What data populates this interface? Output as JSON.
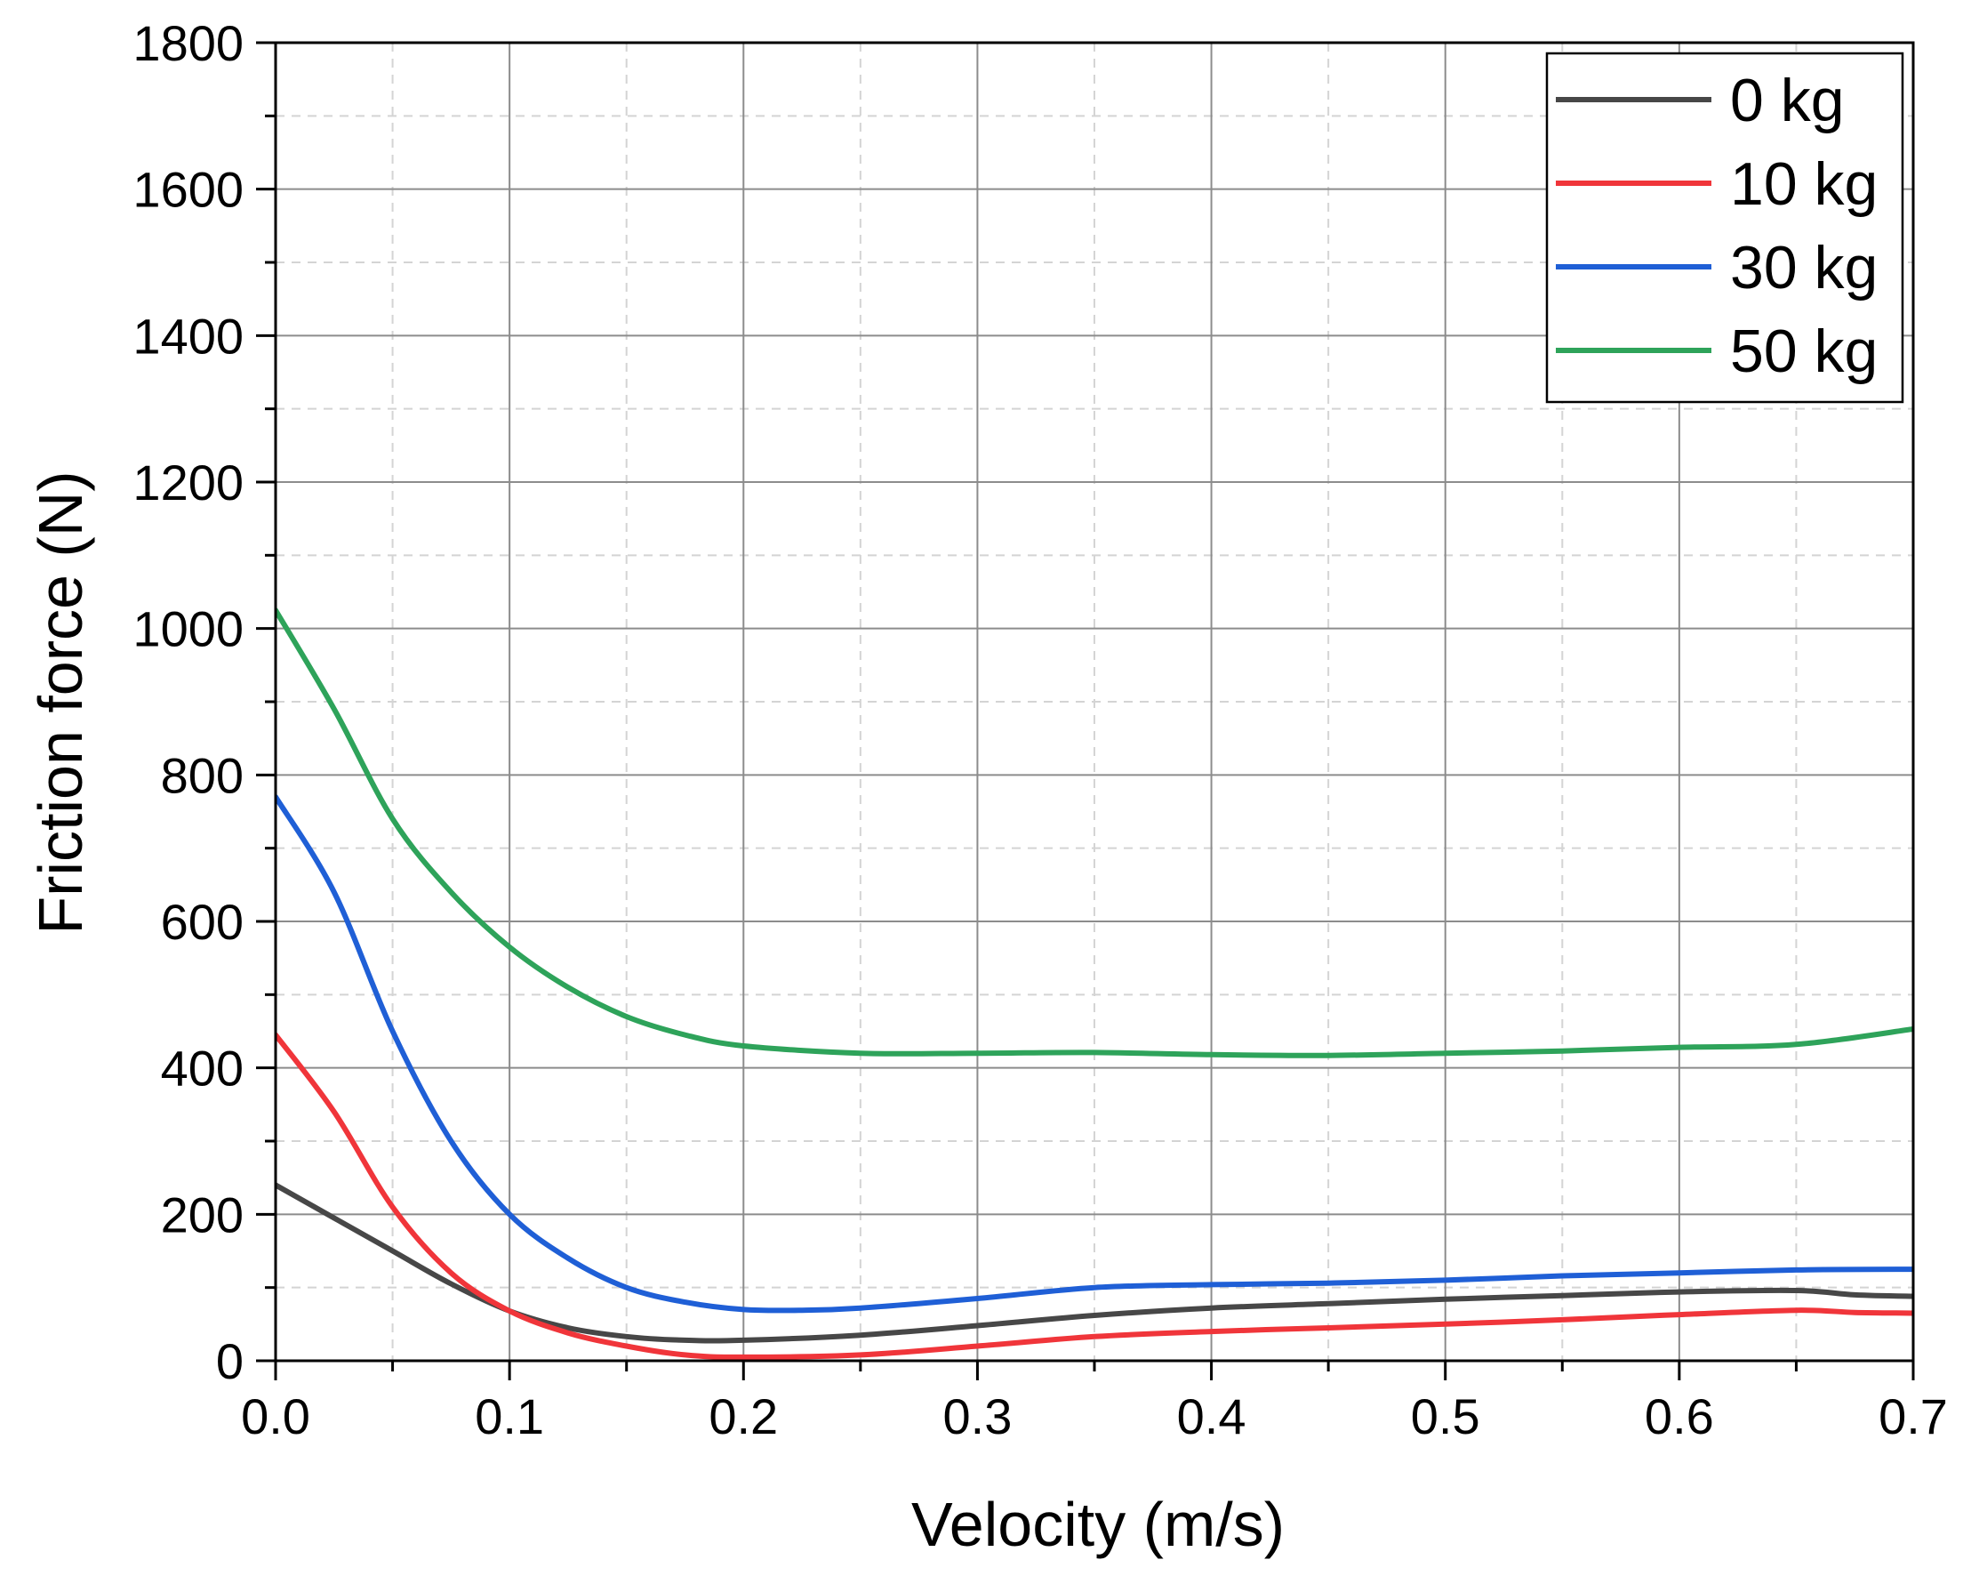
{
  "chart_data": {
    "type": "line",
    "xlabel": "Velocity (m/s)",
    "ylabel": "Friction force (N)",
    "xlim": [
      0,
      0.7
    ],
    "ylim": [
      0,
      1800
    ],
    "xticks": [
      "0.0",
      "0.1",
      "0.2",
      "0.3",
      "0.4",
      "0.5",
      "0.6",
      "0.7"
    ],
    "yticks": [
      "0",
      "200",
      "400",
      "600",
      "800",
      "1000",
      "1200",
      "1400",
      "1600",
      "1800"
    ],
    "grid": true,
    "legend_position": "top-right",
    "series": [
      {
        "name": "0 kg",
        "color": "#474747",
        "x": [
          0,
          0.025,
          0.05,
          0.075,
          0.1,
          0.125,
          0.15,
          0.175,
          0.2,
          0.25,
          0.3,
          0.35,
          0.4,
          0.45,
          0.5,
          0.55,
          0.6,
          0.65,
          0.675,
          0.7
        ],
        "y": [
          240,
          195,
          150,
          105,
          68,
          45,
          33,
          28,
          28,
          35,
          48,
          62,
          72,
          78,
          84,
          89,
          94,
          96,
          90,
          88
        ]
      },
      {
        "name": "10 kg",
        "color": "#f0353a",
        "x": [
          0,
          0.025,
          0.05,
          0.075,
          0.1,
          0.125,
          0.15,
          0.175,
          0.2,
          0.25,
          0.3,
          0.35,
          0.4,
          0.45,
          0.5,
          0.55,
          0.6,
          0.65,
          0.675,
          0.7
        ],
        "y": [
          445,
          340,
          210,
          120,
          68,
          38,
          20,
          8,
          5,
          8,
          20,
          33,
          40,
          45,
          50,
          56,
          63,
          69,
          66,
          65
        ]
      },
      {
        "name": "30 kg",
        "color": "#1f5fd6",
        "x": [
          0,
          0.025,
          0.05,
          0.075,
          0.1,
          0.125,
          0.15,
          0.175,
          0.2,
          0.225,
          0.25,
          0.3,
          0.35,
          0.4,
          0.45,
          0.5,
          0.55,
          0.6,
          0.65,
          0.7
        ],
        "y": [
          770,
          640,
          450,
          300,
          200,
          140,
          100,
          80,
          70,
          69,
          72,
          85,
          100,
          104,
          106,
          110,
          116,
          120,
          124,
          125
        ]
      },
      {
        "name": "50 kg",
        "color": "#2ea35a",
        "x": [
          0,
          0.025,
          0.05,
          0.075,
          0.1,
          0.125,
          0.15,
          0.175,
          0.2,
          0.25,
          0.3,
          0.35,
          0.4,
          0.45,
          0.5,
          0.55,
          0.6,
          0.65,
          0.7
        ],
        "y": [
          1025,
          890,
          740,
          640,
          565,
          510,
          470,
          445,
          430,
          420,
          420,
          421,
          418,
          417,
          420,
          423,
          428,
          432,
          453
        ]
      }
    ]
  }
}
